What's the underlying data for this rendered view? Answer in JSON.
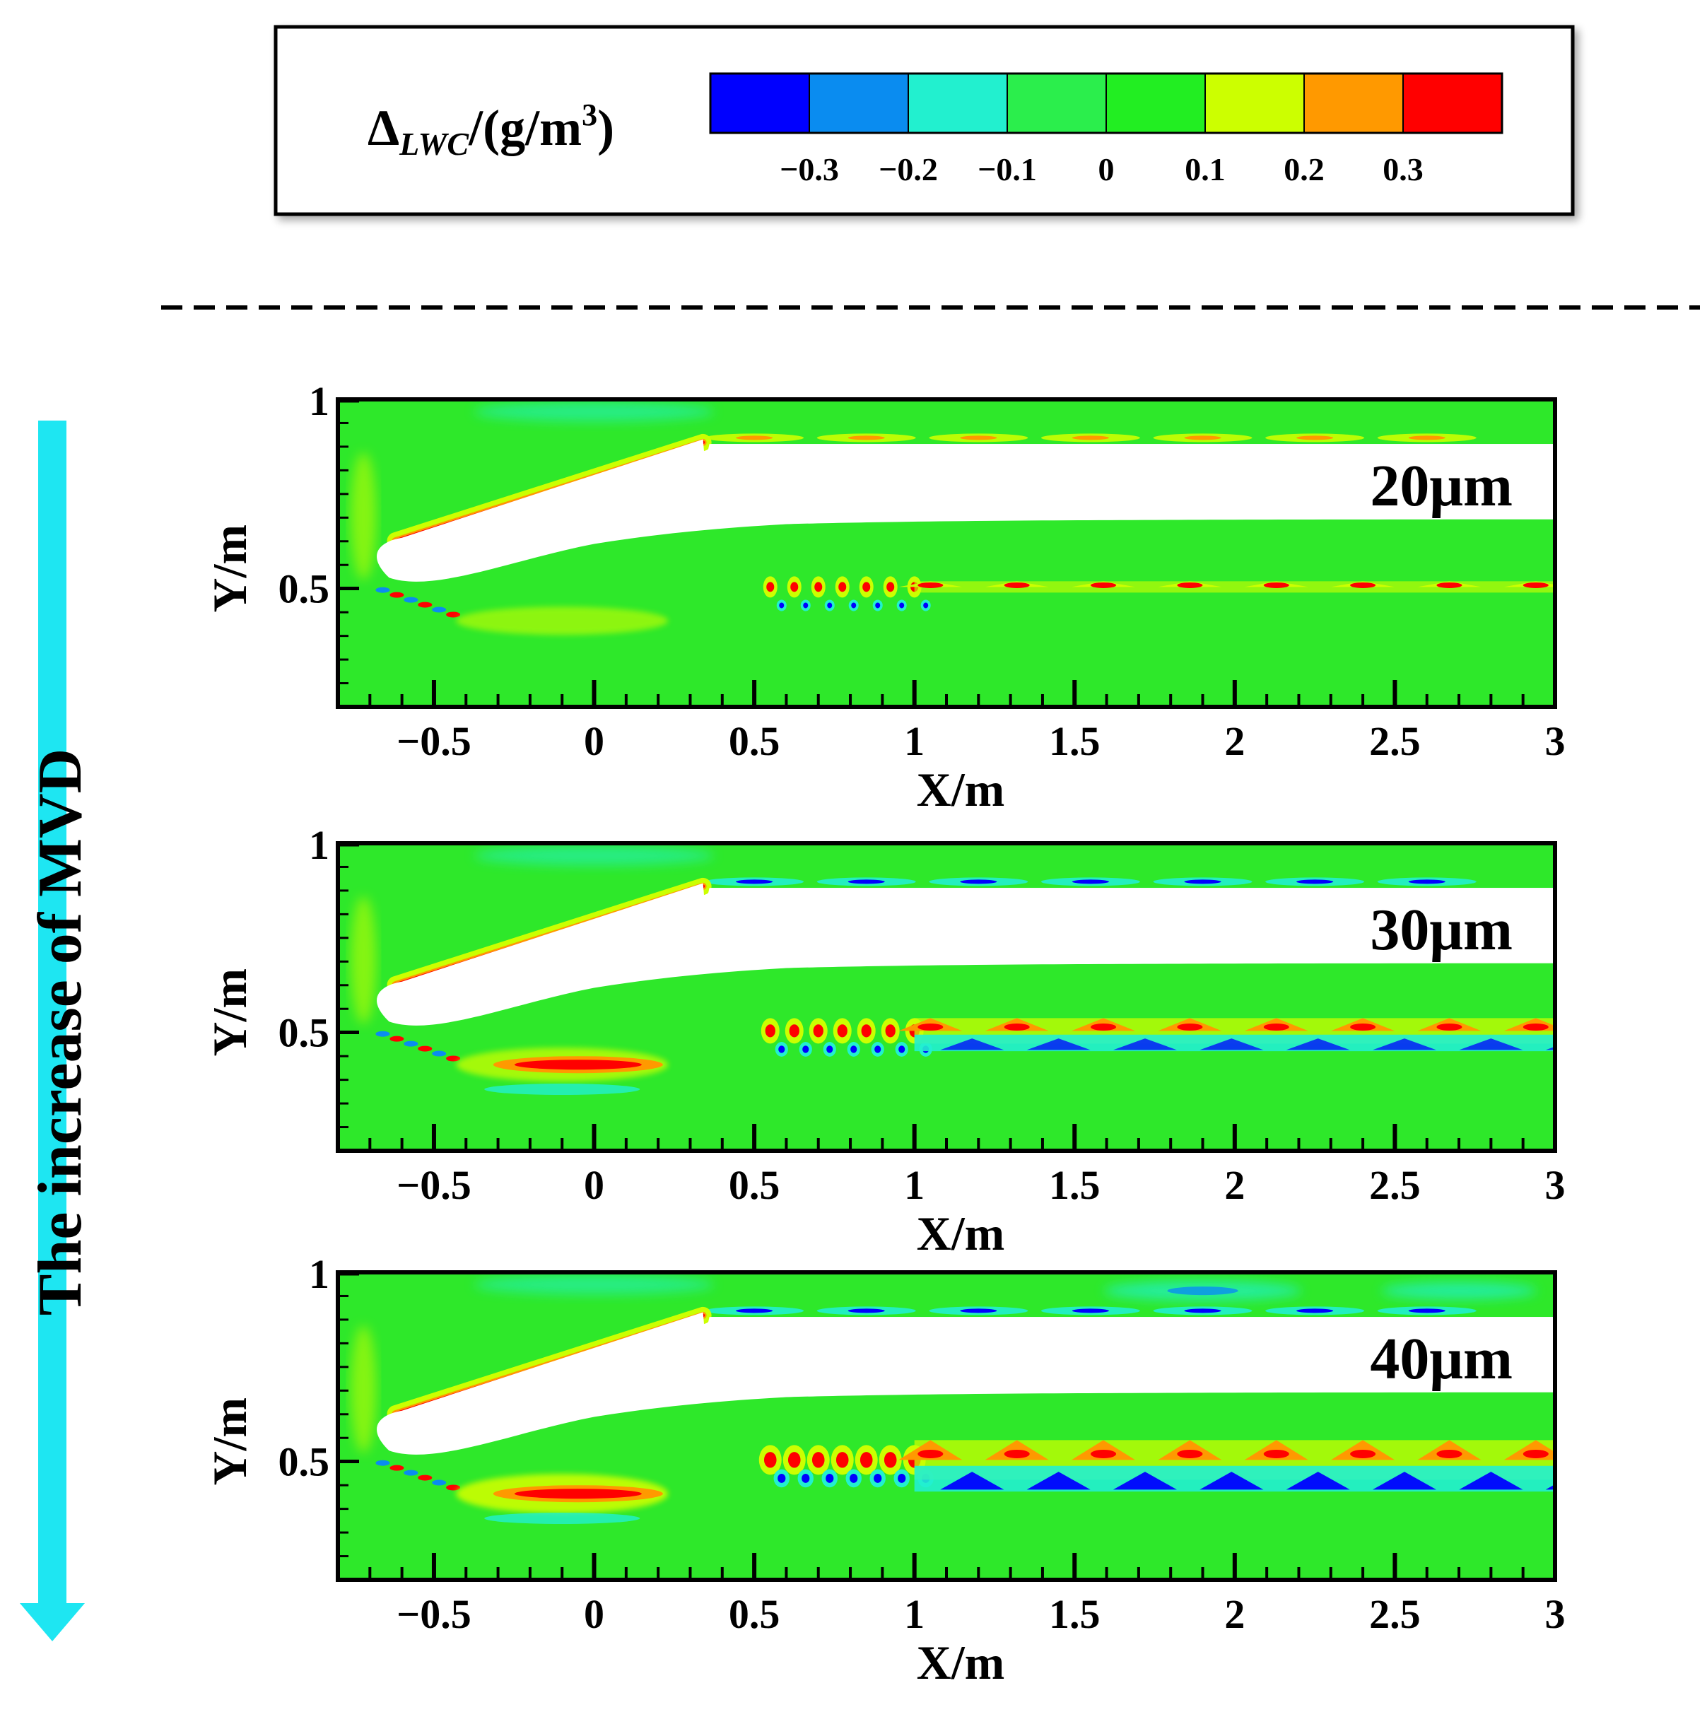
{
  "legend": {
    "title_main": "Δ",
    "title_sub": "LWC",
    "title_unit": "/(g/m",
    "title_sup": "3",
    "title_close": ")",
    "ticks": [
      "−0.3",
      "−0.2",
      "−0.1",
      "0",
      "0.1",
      "0.2",
      "0.3"
    ],
    "levels": [
      {
        "color": "#0000ff"
      },
      {
        "color": "#0a8cf0"
      },
      {
        "color": "#22f0cf"
      },
      {
        "color": "#2bee4c"
      },
      {
        "color": "#22ee22"
      },
      {
        "color": "#ccff00"
      },
      {
        "color": "#ff9900"
      },
      {
        "color": "#ff0000"
      }
    ]
  },
  "trend_label": "The increase of MVD",
  "colors": {
    "field": "#2ee82a",
    "arrow": "#1ee6f2",
    "blue": "#0000ff",
    "lightblue": "#0a8cf0",
    "cyan": "#22f0cf",
    "yellow": "#ccff00",
    "orange": "#ff9900",
    "red": "#ff0000",
    "frame": "#000000"
  },
  "chart_data": [
    {
      "type": "contour",
      "annotation": "20μm",
      "xlabel": "X/m",
      "ylabel": "Y/m",
      "xlim": [
        -0.8,
        3.0
      ],
      "ylim": [
        0.2,
        1.0
      ],
      "xticks": [
        "−0.5",
        "0",
        "0.5",
        "1",
        "1.5",
        "2",
        "2.5",
        "3"
      ],
      "yticks": [
        "0.5",
        "1"
      ]
    },
    {
      "type": "contour",
      "annotation": "30μm",
      "xlabel": "X/m",
      "ylabel": "Y/m",
      "xlim": [
        -0.8,
        3.0
      ],
      "ylim": [
        0.2,
        1.0
      ],
      "xticks": [
        "−0.5",
        "0",
        "0.5",
        "1",
        "1.5",
        "2",
        "2.5",
        "3"
      ],
      "yticks": [
        "0.5",
        "1"
      ]
    },
    {
      "type": "contour",
      "annotation": "40μm",
      "xlabel": "X/m",
      "ylabel": "Y/m",
      "xlim": [
        -0.8,
        3.0
      ],
      "ylim": [
        0.2,
        1.0
      ],
      "xticks": [
        "−0.5",
        "0",
        "0.5",
        "1",
        "1.5",
        "2",
        "2.5",
        "3"
      ],
      "yticks": [
        "0.5",
        "1"
      ]
    }
  ]
}
